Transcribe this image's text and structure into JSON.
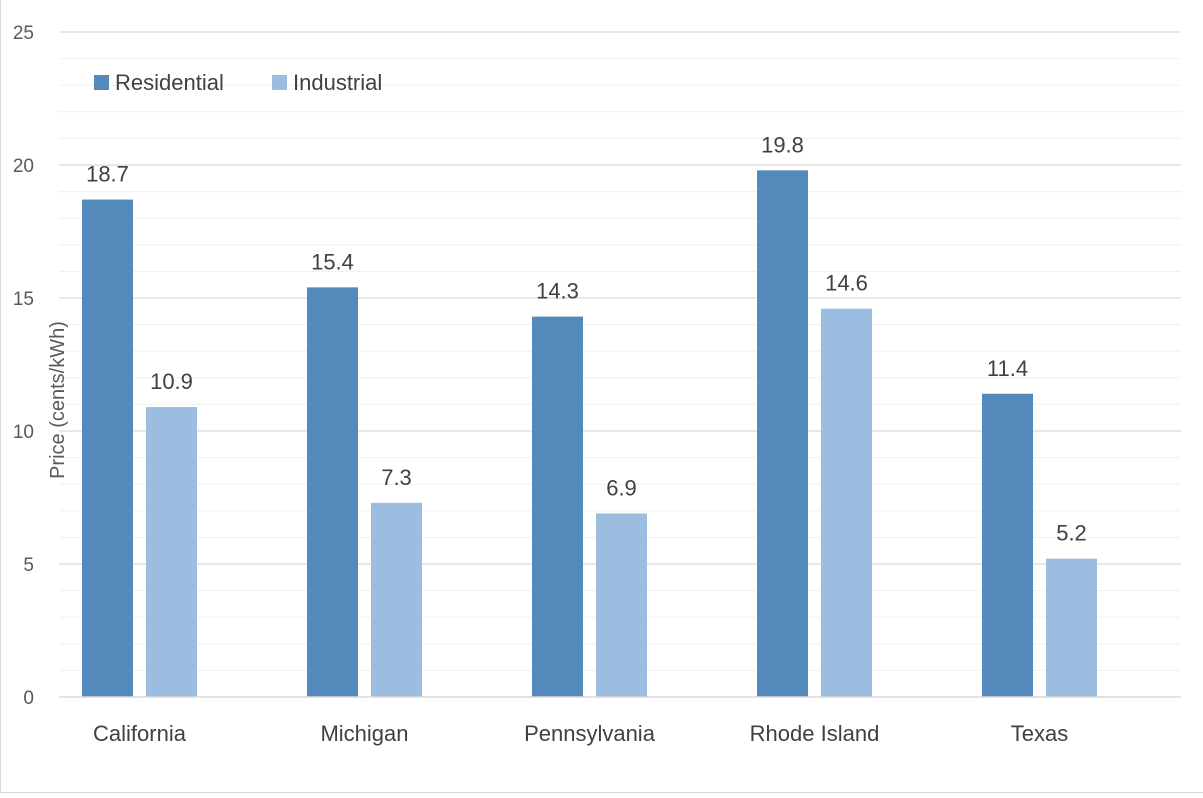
{
  "chart_data": {
    "type": "bar",
    "title": "",
    "xlabel": "",
    "ylabel": "Price (cents/kWh)",
    "ylim": [
      0,
      25
    ],
    "yticks": [
      0,
      5,
      10,
      15,
      20,
      25
    ],
    "minor_grid_step": 1,
    "grid": true,
    "legend": "top-left",
    "categories": [
      "California",
      "Michigan",
      "Pennsylvania",
      "Rhode Island",
      "Texas"
    ],
    "series": [
      {
        "name": "Residential",
        "color": "#5489bb",
        "values": [
          18.7,
          15.4,
          14.3,
          19.8,
          11.4
        ]
      },
      {
        "name": "Industrial",
        "color": "#9bbde0",
        "values": [
          10.9,
          7.3,
          6.9,
          14.6,
          5.2
        ]
      }
    ]
  }
}
